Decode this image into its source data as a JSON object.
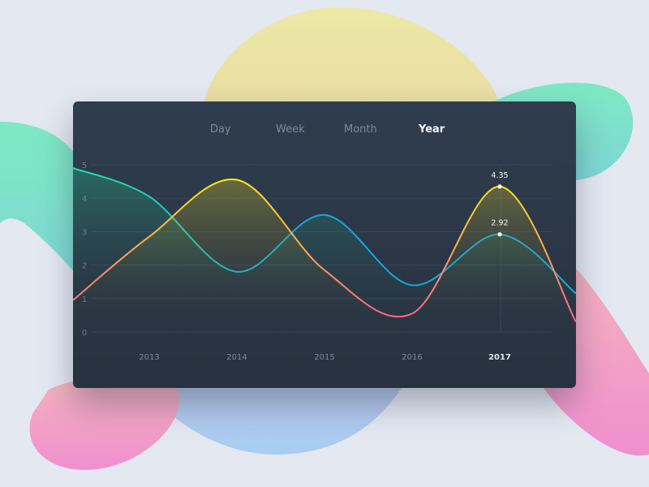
{
  "tabs": [
    {
      "label": "Day"
    },
    {
      "label": "Week"
    },
    {
      "label": "Month"
    },
    {
      "label": "Year",
      "active": true
    }
  ],
  "chart_data": {
    "type": "line",
    "x_ticks": [
      "2013",
      "2014",
      "2015",
      "2016",
      "2017"
    ],
    "highlighted_x": "2017",
    "y_ticks": [
      "0",
      "1",
      "2",
      "3",
      "4",
      "5"
    ],
    "ylim": [
      0,
      5
    ],
    "xlim": [
      2012.13,
      2017.87
    ],
    "grid": true,
    "series": [
      {
        "colors": [
          "#1fe3a0",
          "#12a8e0"
        ],
        "x": [
          2012.13,
          2013,
          2014,
          2015,
          2016,
          2017,
          2017.87
        ],
        "values": [
          4.9,
          4.05,
          1.8,
          3.5,
          1.4,
          2.92,
          1.15
        ]
      },
      {
        "colors": [
          "#ff5f8f",
          "#ffe81a"
        ],
        "x": [
          2012.13,
          2013,
          2014,
          2015,
          2016,
          2017,
          2017.87
        ],
        "values": [
          0.95,
          2.85,
          4.55,
          1.85,
          0.55,
          4.35,
          0.3
        ]
      }
    ],
    "annotations": [
      {
        "x": "2017",
        "value": "4.35"
      },
      {
        "x": "2017",
        "value": "2.92"
      }
    ]
  }
}
